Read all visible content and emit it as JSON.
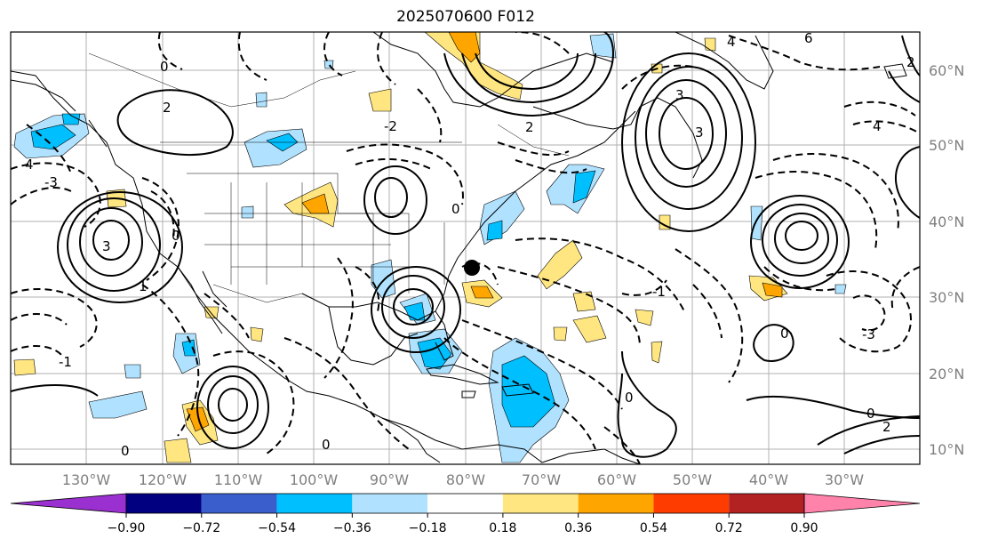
{
  "title": "2025070600 F012",
  "lat_labels": [
    "60°N",
    "50°N",
    "40°N",
    "30°N",
    "20°N",
    "10°N"
  ],
  "lon_labels": [
    "130°W",
    "120°W",
    "110°W",
    "100°W",
    "90°W",
    "80°W",
    "70°W",
    "60°W",
    "50°W",
    "40°W",
    "30°W"
  ],
  "colorbar": {
    "ticks": [
      "−0.90",
      "−0.72",
      "−0.54",
      "−0.36",
      "−0.18",
      "0.18",
      "0.36",
      "0.54",
      "0.72",
      "0.90"
    ],
    "colors": [
      "#9b30d0",
      "#000080",
      "#3a5fcd",
      "#00bfff",
      "#b0e2ff",
      "#ffffff",
      "#ffe680",
      "#ffa500",
      "#ff3c00",
      "#b22222",
      "#ff82ab"
    ]
  },
  "contour_labels": [
    "0",
    "2",
    "3",
    "-2",
    "-1",
    "1",
    "4",
    "6",
    "-3"
  ]
}
